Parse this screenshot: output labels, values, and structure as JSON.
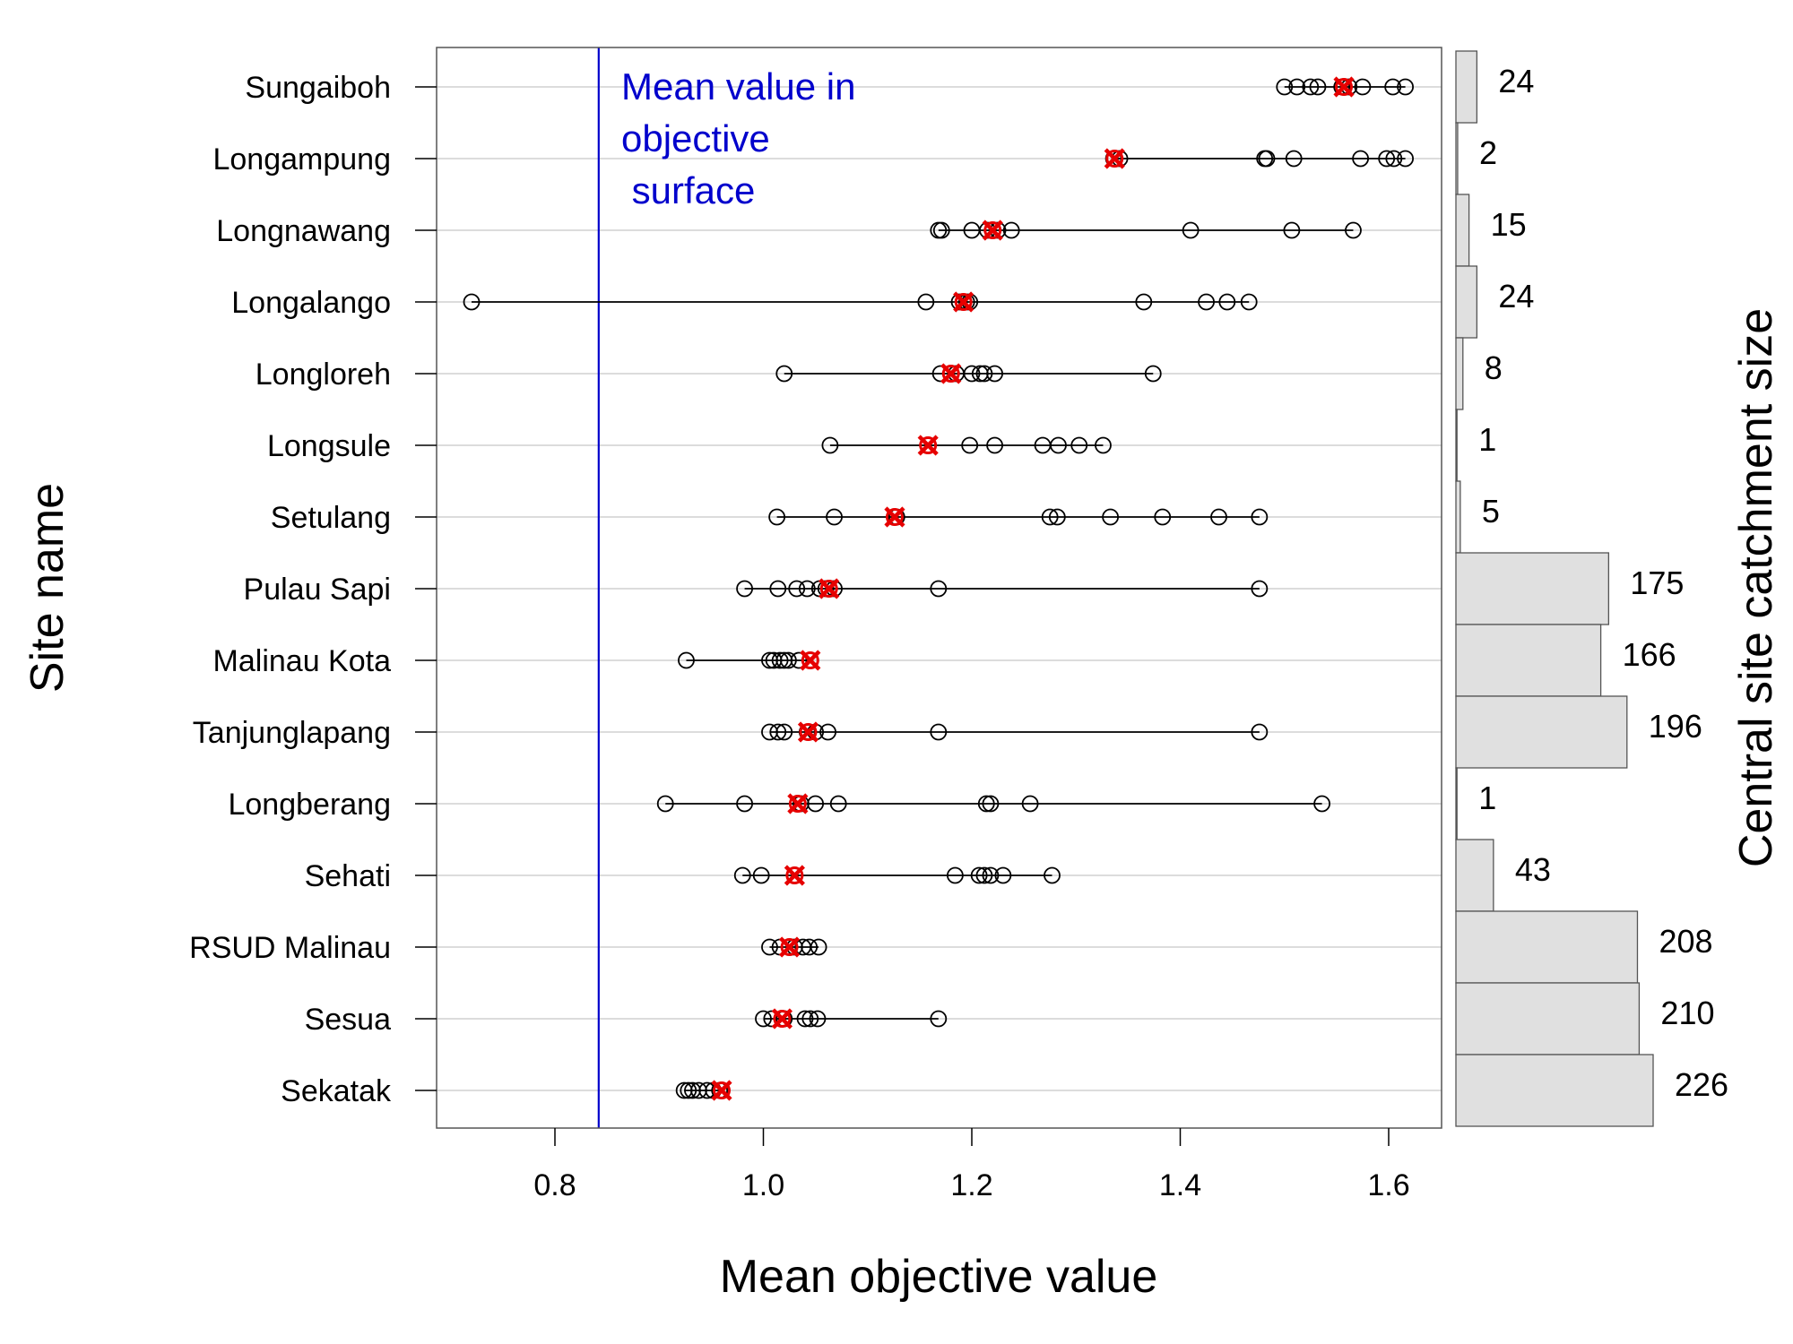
{
  "chart_data": {
    "type": "scatter",
    "xlabel": "Mean objective value",
    "ylabel": "Site name",
    "right_ylabel": "Central site catchment size",
    "xlim": [
      0.72,
      1.66
    ],
    "xticks": [
      "0.8",
      "1.0",
      "1.2",
      "1.4",
      "1.6"
    ],
    "xtick_values": [
      0.8,
      1.0,
      1.2,
      1.4,
      1.6
    ],
    "grid": "horizontal",
    "reference_line": {
      "x": 0.842,
      "label_lines": [
        "Mean value in",
        "objective",
        " surface"
      ],
      "color": "#0000cc"
    },
    "colors": {
      "marker": "#000000",
      "highlight": "#e60000",
      "bar_fill": "#e0e0e0",
      "grid": "#c8c8c8"
    },
    "sites": [
      {
        "name": "Sungaiboh",
        "values": [
          1.5,
          1.512,
          1.525,
          1.532,
          1.555,
          1.562,
          1.575,
          1.604,
          1.616
        ],
        "highlight": 1.557,
        "catchment": 24
      },
      {
        "name": "Longampung",
        "values": [
          1.336,
          1.342,
          1.481,
          1.483,
          1.509,
          1.573,
          1.598,
          1.605,
          1.616
        ],
        "highlight": 1.337,
        "catchment": 2
      },
      {
        "name": "Longnawang",
        "values": [
          1.168,
          1.171,
          1.2,
          1.215,
          1.225,
          1.238,
          1.41,
          1.507,
          1.566
        ],
        "highlight": 1.22,
        "catchment": 15
      },
      {
        "name": "Longalango",
        "values": [
          0.72,
          1.156,
          1.188,
          1.195,
          1.198,
          1.365,
          1.425,
          1.445,
          1.466
        ],
        "highlight": 1.192,
        "catchment": 24
      },
      {
        "name": "Longloreh",
        "values": [
          1.02,
          1.17,
          1.185,
          1.2,
          1.208,
          1.212,
          1.222,
          1.374
        ],
        "highlight": 1.18,
        "catchment": 8
      },
      {
        "name": "Longsule",
        "values": [
          1.064,
          1.158,
          1.198,
          1.222,
          1.268,
          1.283,
          1.303,
          1.326
        ],
        "highlight": 1.158,
        "catchment": 1
      },
      {
        "name": "Setulang",
        "values": [
          1.013,
          1.068,
          1.128,
          1.275,
          1.282,
          1.333,
          1.383,
          1.437,
          1.476
        ],
        "highlight": 1.126,
        "catchment": 5
      },
      {
        "name": "Pulau Sapi",
        "values": [
          0.982,
          1.014,
          1.032,
          1.042,
          1.054,
          1.06,
          1.068,
          1.168,
          1.476
        ],
        "highlight": 1.063,
        "catchment": 175
      },
      {
        "name": "Malinau Kota",
        "values": [
          0.926,
          1.006,
          1.01,
          1.016,
          1.02,
          1.024,
          1.034,
          1.045
        ],
        "highlight": 1.045,
        "catchment": 166
      },
      {
        "name": "Tanjunglapang",
        "values": [
          1.006,
          1.014,
          1.02,
          1.042,
          1.05,
          1.062,
          1.168,
          1.476
        ],
        "highlight": 1.043,
        "catchment": 196
      },
      {
        "name": "Longberang",
        "values": [
          0.906,
          0.982,
          1.036,
          1.05,
          1.072,
          1.214,
          1.218,
          1.256,
          1.536
        ],
        "highlight": 1.033,
        "catchment": 1
      },
      {
        "name": "Sehati",
        "values": [
          0.98,
          0.998,
          1.03,
          1.184,
          1.207,
          1.212,
          1.218,
          1.23,
          1.277
        ],
        "highlight": 1.03,
        "catchment": 43
      },
      {
        "name": "RSUD Malinau",
        "values": [
          1.006,
          1.016,
          1.03,
          1.038,
          1.044,
          1.053
        ],
        "highlight": 1.025,
        "catchment": 208
      },
      {
        "name": "Sesua",
        "values": [
          1.0,
          1.008,
          1.02,
          1.04,
          1.045,
          1.052,
          1.168
        ],
        "highlight": 1.018,
        "catchment": 210
      },
      {
        "name": "Sekatak",
        "values": [
          0.924,
          0.928,
          0.932,
          0.938,
          0.946,
          0.952,
          0.958
        ],
        "highlight": 0.96,
        "catchment": 226
      }
    ]
  }
}
